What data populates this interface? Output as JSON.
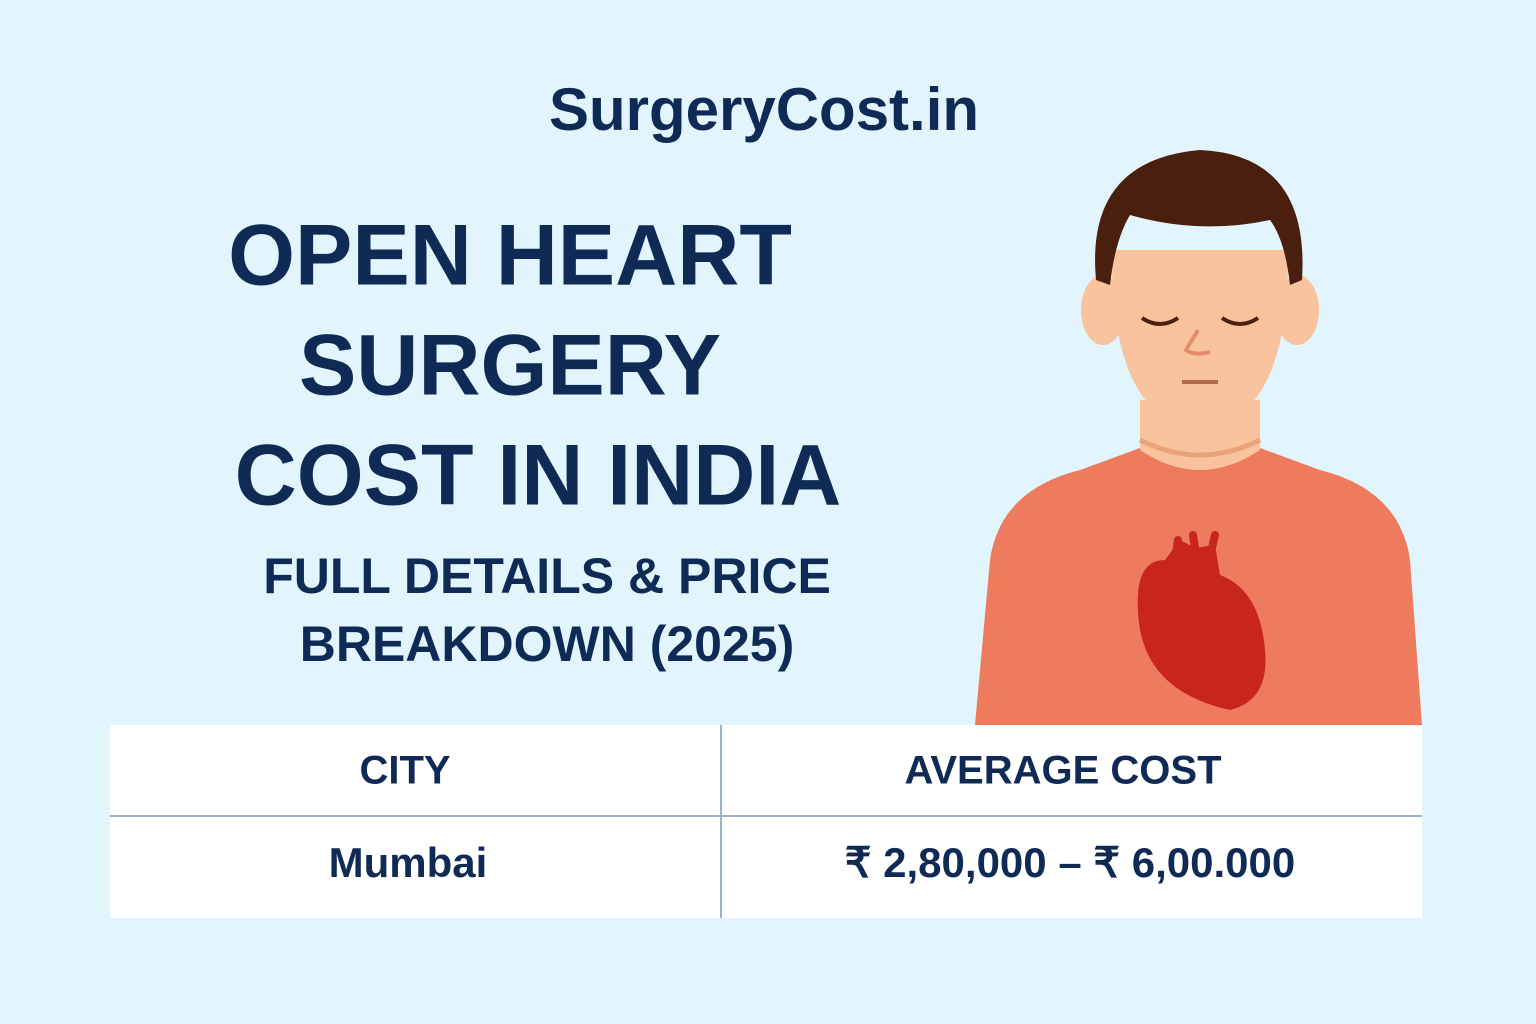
{
  "brand": "SurgeryCost.in",
  "title": {
    "lines": [
      "OPEN HEART",
      "SURGERY",
      "COST IN INDIA"
    ]
  },
  "subtitle": {
    "lines": [
      "FULL DETAILS & PRICE",
      "BREAKDOWN (2025)"
    ]
  },
  "table": {
    "header": [
      "CITY",
      "AVERAGE COST"
    ],
    "rows": [
      [
        "Mumbai",
        "₹ 2,80,000 – ₹ 6,00.000"
      ]
    ]
  }
}
